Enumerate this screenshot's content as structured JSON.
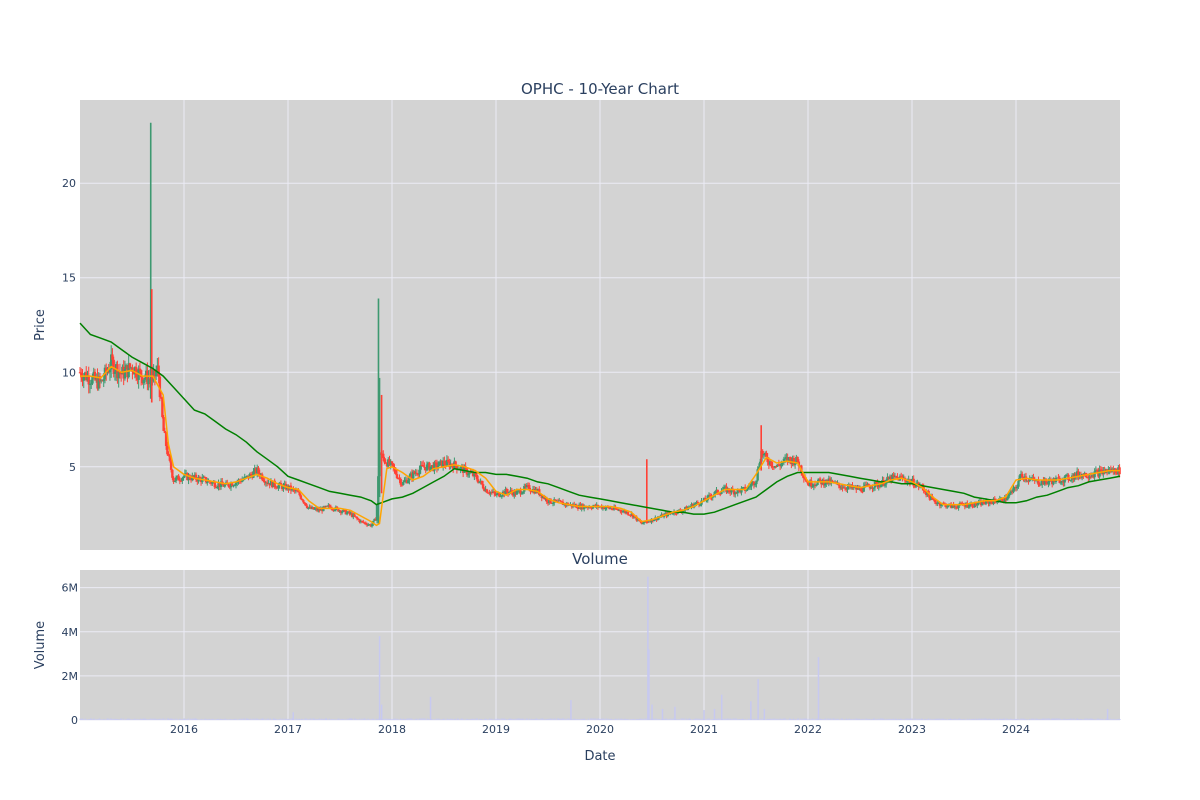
{
  "chart_data": [
    {
      "type": "candlestick",
      "title": "OPHC - 10-Year Chart",
      "ylabel": "Price",
      "ylim": [
        0.6,
        24.4
      ],
      "yticks": [
        5,
        10,
        15,
        20
      ],
      "xlim": [
        2015.0,
        2025.0
      ],
      "xticks": [
        2016,
        2017,
        2018,
        2019,
        2020,
        2021,
        2022,
        2023,
        2024
      ],
      "xticklabels": [
        "2016",
        "2017",
        "2018",
        "2019",
        "2020",
        "2021",
        "2022",
        "2023",
        "2024"
      ],
      "grid": true,
      "colors": {
        "background": "#d3d3d3",
        "up": "#3d9970",
        "down": "#ff4136",
        "ma_short": "#ffa500",
        "ma_long": "#008000",
        "grid": "#ebebf5"
      },
      "close_series": {
        "x": [
          2015.0,
          2015.1,
          2015.2,
          2015.3,
          2015.4,
          2015.5,
          2015.6,
          2015.7,
          2015.75,
          2015.8,
          2015.85,
          2015.9,
          2016.0,
          2016.1,
          2016.2,
          2016.3,
          2016.4,
          2016.5,
          2016.6,
          2016.7,
          2016.8,
          2016.9,
          2017.0,
          2017.1,
          2017.2,
          2017.3,
          2017.4,
          2017.5,
          2017.6,
          2017.7,
          2017.8,
          2017.85,
          2017.88,
          2017.92,
          2018.0,
          2018.1,
          2018.2,
          2018.3,
          2018.4,
          2018.5,
          2018.6,
          2018.7,
          2018.8,
          2018.9,
          2019.0,
          2019.1,
          2019.2,
          2019.3,
          2019.4,
          2019.5,
          2019.6,
          2019.7,
          2019.8,
          2019.9,
          2020.0,
          2020.1,
          2020.2,
          2020.3,
          2020.4,
          2020.5,
          2020.6,
          2020.7,
          2020.8,
          2020.9,
          2021.0,
          2021.1,
          2021.2,
          2021.3,
          2021.4,
          2021.5,
          2021.55,
          2021.6,
          2021.7,
          2021.8,
          2021.9,
          2022.0,
          2022.1,
          2022.2,
          2022.3,
          2022.4,
          2022.5,
          2022.6,
          2022.7,
          2022.8,
          2022.9,
          2023.0,
          2023.1,
          2023.2,
          2023.3,
          2023.4,
          2023.5,
          2023.6,
          2023.7,
          2023.8,
          2023.9,
          2024.0,
          2024.05,
          2024.1,
          2024.2,
          2024.3,
          2024.4,
          2024.5,
          2024.6,
          2024.7,
          2024.8,
          2024.9,
          2025.0
        ],
        "y": [
          10.0,
          9.7,
          9.4,
          10.5,
          9.9,
          10.3,
          9.8,
          9.6,
          10.2,
          7.0,
          5.5,
          4.3,
          4.5,
          4.4,
          4.3,
          4.1,
          4.0,
          4.2,
          4.4,
          4.8,
          4.2,
          4.0,
          3.9,
          3.6,
          2.8,
          2.7,
          2.9,
          2.7,
          2.5,
          2.1,
          1.9,
          2.3,
          5.8,
          5.4,
          5.0,
          4.1,
          4.6,
          5.0,
          5.0,
          5.2,
          5.1,
          4.8,
          4.5,
          3.8,
          3.5,
          3.7,
          3.6,
          3.9,
          3.7,
          3.2,
          3.1,
          3.0,
          2.9,
          2.9,
          2.9,
          2.8,
          2.7,
          2.5,
          2.0,
          2.2,
          2.4,
          2.6,
          2.7,
          3.0,
          3.2,
          3.6,
          3.8,
          3.7,
          3.8,
          4.3,
          5.8,
          5.4,
          5.0,
          5.4,
          5.3,
          4.1,
          4.2,
          4.2,
          4.0,
          3.9,
          3.8,
          4.0,
          4.1,
          4.4,
          4.4,
          4.2,
          3.9,
          3.2,
          3.0,
          2.9,
          3.0,
          3.0,
          3.1,
          3.2,
          3.3,
          3.9,
          4.6,
          4.4,
          4.2,
          4.2,
          4.3,
          4.4,
          4.6,
          4.6,
          4.7,
          4.8,
          4.8
        ]
      },
      "ma_short": {
        "x": [
          2015.0,
          2015.1,
          2015.2,
          2015.3,
          2015.4,
          2015.5,
          2015.6,
          2015.7,
          2015.8,
          2015.85,
          2015.9,
          2016.0,
          2016.1,
          2016.2,
          2016.3,
          2016.4,
          2016.5,
          2016.6,
          2016.7,
          2016.8,
          2016.9,
          2017.0,
          2017.1,
          2017.2,
          2017.3,
          2017.4,
          2017.5,
          2017.6,
          2017.7,
          2017.8,
          2017.85,
          2017.88,
          2017.95,
          2018.0,
          2018.1,
          2018.2,
          2018.3,
          2018.4,
          2018.5,
          2018.6,
          2018.7,
          2018.8,
          2018.9,
          2019.0,
          2019.1,
          2019.2,
          2019.3,
          2019.4,
          2019.5,
          2019.6,
          2019.7,
          2019.8,
          2019.9,
          2020.0,
          2020.1,
          2020.2,
          2020.3,
          2020.4,
          2020.5,
          2020.6,
          2020.7,
          2020.8,
          2020.9,
          2021.0,
          2021.1,
          2021.2,
          2021.3,
          2021.4,
          2021.5,
          2021.6,
          2021.7,
          2021.8,
          2021.9,
          2022.0,
          2022.1,
          2022.2,
          2022.3,
          2022.4,
          2022.5,
          2022.6,
          2022.7,
          2022.8,
          2022.9,
          2023.0,
          2023.1,
          2023.2,
          2023.3,
          2023.4,
          2023.5,
          2023.6,
          2023.7,
          2023.8,
          2023.9,
          2024.0,
          2024.1,
          2024.2,
          2024.3,
          2024.4,
          2024.5,
          2024.6,
          2024.7,
          2024.8,
          2024.9,
          2025.0
        ],
        "y": [
          9.8,
          9.8,
          9.7,
          10.3,
          10.0,
          10.1,
          9.8,
          9.8,
          8.8,
          6.2,
          5.0,
          4.6,
          4.4,
          4.3,
          4.2,
          4.1,
          4.2,
          4.4,
          4.6,
          4.4,
          4.1,
          3.9,
          3.8,
          3.2,
          2.8,
          2.8,
          2.8,
          2.7,
          2.4,
          2.1,
          1.9,
          2.0,
          4.9,
          5.0,
          4.7,
          4.3,
          4.5,
          4.9,
          5.0,
          5.1,
          5.0,
          4.8,
          4.4,
          3.7,
          3.5,
          3.8,
          3.8,
          3.7,
          3.3,
          3.1,
          3.0,
          2.9,
          2.9,
          2.9,
          2.9,
          2.8,
          2.6,
          2.1,
          2.2,
          2.4,
          2.6,
          2.7,
          2.9,
          3.2,
          3.5,
          3.8,
          3.8,
          3.8,
          4.6,
          5.5,
          5.2,
          5.3,
          5.2,
          4.2,
          4.2,
          4.2,
          4.1,
          4.0,
          3.9,
          4.0,
          4.1,
          4.3,
          4.4,
          4.2,
          3.9,
          3.4,
          3.0,
          3.0,
          3.0,
          3.1,
          3.2,
          3.2,
          3.4,
          4.3,
          4.4,
          4.3,
          4.3,
          4.3,
          4.4,
          4.5,
          4.6,
          4.7,
          4.8,
          4.8
        ]
      },
      "ma_long": {
        "x": [
          2015.0,
          2015.1,
          2015.2,
          2015.3,
          2015.4,
          2015.5,
          2015.6,
          2015.7,
          2015.8,
          2015.9,
          2016.0,
          2016.1,
          2016.2,
          2016.3,
          2016.4,
          2016.5,
          2016.6,
          2016.7,
          2016.8,
          2016.9,
          2017.0,
          2017.1,
          2017.2,
          2017.3,
          2017.4,
          2017.5,
          2017.6,
          2017.7,
          2017.8,
          2017.85,
          2017.9,
          2018.0,
          2018.1,
          2018.2,
          2018.3,
          2018.4,
          2018.5,
          2018.6,
          2018.7,
          2018.8,
          2018.9,
          2019.0,
          2019.1,
          2019.2,
          2019.3,
          2019.4,
          2019.5,
          2019.6,
          2019.7,
          2019.8,
          2019.9,
          2020.0,
          2020.1,
          2020.2,
          2020.3,
          2020.4,
          2020.5,
          2020.6,
          2020.7,
          2020.8,
          2020.9,
          2021.0,
          2021.1,
          2021.2,
          2021.3,
          2021.4,
          2021.5,
          2021.6,
          2021.7,
          2021.8,
          2021.9,
          2022.0,
          2022.1,
          2022.2,
          2022.3,
          2022.4,
          2022.5,
          2022.6,
          2022.7,
          2022.8,
          2022.9,
          2023.0,
          2023.1,
          2023.2,
          2023.3,
          2023.4,
          2023.5,
          2023.6,
          2023.7,
          2023.8,
          2023.9,
          2024.0,
          2024.1,
          2024.2,
          2024.3,
          2024.4,
          2024.5,
          2024.6,
          2024.7,
          2024.8,
          2024.9,
          2025.0
        ],
        "y": [
          12.6,
          12.0,
          11.8,
          11.6,
          11.2,
          10.8,
          10.5,
          10.2,
          9.8,
          9.2,
          8.6,
          8.0,
          7.8,
          7.4,
          7.0,
          6.7,
          6.3,
          5.8,
          5.4,
          5.0,
          4.5,
          4.3,
          4.1,
          3.9,
          3.7,
          3.6,
          3.5,
          3.4,
          3.2,
          3.0,
          3.1,
          3.3,
          3.4,
          3.6,
          3.9,
          4.2,
          4.5,
          4.9,
          4.8,
          4.7,
          4.7,
          4.6,
          4.6,
          4.5,
          4.4,
          4.2,
          4.1,
          3.9,
          3.7,
          3.5,
          3.4,
          3.3,
          3.2,
          3.1,
          3.0,
          2.9,
          2.8,
          2.7,
          2.6,
          2.6,
          2.5,
          2.5,
          2.6,
          2.8,
          3.0,
          3.2,
          3.4,
          3.8,
          4.2,
          4.5,
          4.7,
          4.7,
          4.7,
          4.7,
          4.6,
          4.5,
          4.4,
          4.3,
          4.2,
          4.2,
          4.1,
          4.1,
          4.0,
          3.9,
          3.8,
          3.7,
          3.6,
          3.4,
          3.3,
          3.2,
          3.1,
          3.1,
          3.2,
          3.4,
          3.5,
          3.7,
          3.9,
          4.0,
          4.2,
          4.3,
          4.4,
          4.5
        ]
      },
      "spikes": [
        {
          "x": 2015.68,
          "low": 8.6,
          "high": 23.2,
          "dir": "up"
        },
        {
          "x": 2015.69,
          "low": 8.4,
          "high": 14.4,
          "dir": "down"
        },
        {
          "x": 2017.87,
          "low": 2.0,
          "high": 13.9,
          "dir": "up"
        },
        {
          "x": 2017.88,
          "low": 3.4,
          "high": 9.7,
          "dir": "up"
        },
        {
          "x": 2017.9,
          "low": 3.6,
          "high": 8.8,
          "dir": "down"
        },
        {
          "x": 2020.45,
          "low": 2.0,
          "high": 5.4,
          "dir": "down"
        },
        {
          "x": 2021.55,
          "low": 4.8,
          "high": 7.2,
          "dir": "down"
        }
      ]
    },
    {
      "type": "bar",
      "title": "Volume",
      "xlabel": "Date",
      "ylabel": "Volume",
      "ylim": [
        0,
        6800000
      ],
      "yticks": [
        0,
        2000000,
        4000000,
        6000000
      ],
      "yticklabels": [
        "0",
        "2M",
        "4M",
        "6M"
      ],
      "xlim": [
        2015.0,
        2025.0
      ],
      "bar_color": "#c7c9f0",
      "spikes": [
        {
          "x": 2017.05,
          "value": 350000
        },
        {
          "x": 2017.88,
          "value": 3800000
        },
        {
          "x": 2017.9,
          "value": 700000
        },
        {
          "x": 2018.37,
          "value": 1050000
        },
        {
          "x": 2019.72,
          "value": 900000
        },
        {
          "x": 2020.46,
          "value": 6500000
        },
        {
          "x": 2020.47,
          "value": 3200000
        },
        {
          "x": 2020.5,
          "value": 700000
        },
        {
          "x": 2020.6,
          "value": 500000
        },
        {
          "x": 2020.72,
          "value": 600000
        },
        {
          "x": 2021.0,
          "value": 450000
        },
        {
          "x": 2021.1,
          "value": 500000
        },
        {
          "x": 2021.17,
          "value": 1150000
        },
        {
          "x": 2021.45,
          "value": 850000
        },
        {
          "x": 2021.52,
          "value": 1850000
        },
        {
          "x": 2021.58,
          "value": 500000
        },
        {
          "x": 2022.1,
          "value": 2850000
        },
        {
          "x": 2024.88,
          "value": 500000
        }
      ]
    }
  ]
}
